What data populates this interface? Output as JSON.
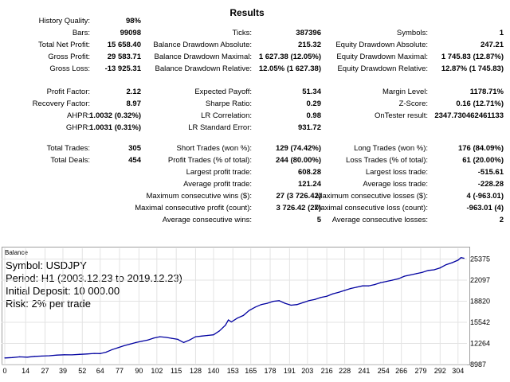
{
  "title": "Results",
  "stats": [
    {
      "label": "History Quality:",
      "value": "98%"
    },
    {
      "label": "Bars:",
      "value": "99098"
    },
    {
      "label": "Total Net Profit:",
      "value": "15 658.40"
    },
    {
      "label": "Gross Profit:",
      "value": "29 583.71"
    },
    {
      "label": "Gross Loss:",
      "value": "-13 925.31"
    },
    {
      "label": "Ticks:",
      "value": "387396"
    },
    {
      "label": "Balance Drawdown Absolute:",
      "value": "215.32"
    },
    {
      "label": "Balance Drawdown Maximal:",
      "value": "1 627.38 (12.05%)"
    },
    {
      "label": "Balance Drawdown Relative:",
      "value": "12.05% (1 627.38)"
    },
    {
      "label": "Symbols:",
      "value": "1"
    },
    {
      "label": "Equity Drawdown Absolute:",
      "value": "247.21"
    },
    {
      "label": "Equity Drawdown Maximal:",
      "value": "1 745.83 (12.87%)"
    },
    {
      "label": "Equity Drawdown Relative:",
      "value": "12.87% (1 745.83)"
    },
    {
      "label": "Profit Factor:",
      "value": "2.12"
    },
    {
      "label": "Recovery Factor:",
      "value": "8.97"
    },
    {
      "label": "AHPR:",
      "value": "1.0032 (0.32%)"
    },
    {
      "label": "GHPR:",
      "value": "1.0031 (0.31%)"
    },
    {
      "label": "Expected Payoff:",
      "value": "51.34"
    },
    {
      "label": "Sharpe Ratio:",
      "value": "0.29"
    },
    {
      "label": "LR Correlation:",
      "value": "0.98"
    },
    {
      "label": "LR Standard Error:",
      "value": "931.72"
    },
    {
      "label": "Margin Level:",
      "value": "1178.71%"
    },
    {
      "label": "Z-Score:",
      "value": "0.16 (12.71%)"
    },
    {
      "label": "OnTester result:",
      "value": "2347.730462461133"
    },
    {
      "label": "Total Trades:",
      "value": "305"
    },
    {
      "label": "Total Deals:",
      "value": "454"
    },
    {
      "label": "Short Trades (won %):",
      "value": "129 (74.42%)"
    },
    {
      "label": "Profit Trades (% of total):",
      "value": "244 (80.00%)"
    },
    {
      "label": "Largest profit trade:",
      "value": "608.28"
    },
    {
      "label": "Average profit trade:",
      "value": "121.24"
    },
    {
      "label": "Maximum consecutive wins ($):",
      "value": "27 (3 726.42)"
    },
    {
      "label": "Maximal consecutive profit (count):",
      "value": "3 726.42 (27)"
    },
    {
      "label": "Average consecutive wins:",
      "value": "5"
    },
    {
      "label": "Long Trades (won %):",
      "value": "176 (84.09%)"
    },
    {
      "label": "Loss Trades (% of total):",
      "value": "61 (20.00%)"
    },
    {
      "label": "Largest loss trade:",
      "value": "-515.61"
    },
    {
      "label": "Average loss trade:",
      "value": "-228.28"
    },
    {
      "label": "Maximum consecutive losses ($):",
      "value": "4 (-963.01)"
    },
    {
      "label": "Maximal consecutive loss (count):",
      "value": "-963.01 (4)"
    },
    {
      "label": "Average consecutive losses:",
      "value": "2"
    }
  ],
  "chart_title": "Balance",
  "chart_info": [
    "Symbol: USDJPY",
    "Period: H1 (2003.12.23 to 2019.12.23)",
    "Initial Deposit: 10 000.00",
    "Risk: 2% per trade"
  ],
  "chart_data": {
    "type": "line",
    "title": "Balance",
    "line_color": "#0000a0",
    "grid": true,
    "xlim": [
      0,
      310
    ],
    "ylim": [
      8987,
      26300
    ],
    "x_ticks": [
      0,
      14,
      27,
      39,
      52,
      64,
      77,
      90,
      102,
      115,
      128,
      140,
      153,
      165,
      178,
      191,
      203,
      216,
      228,
      241,
      254,
      266,
      279,
      292,
      304
    ],
    "y_ticks": [
      8987,
      12264,
      15542,
      18820,
      22097,
      25375
    ],
    "series": [
      {
        "x": [
          0,
          5,
          10,
          15,
          20,
          25,
          30,
          35,
          40,
          45,
          50,
          55,
          60,
          64,
          68,
          72,
          76,
          80,
          84,
          88,
          92,
          96,
          100,
          104,
          108,
          112,
          116,
          120,
          124,
          128,
          132,
          136,
          140,
          144,
          148,
          150,
          152,
          156,
          160,
          164,
          168,
          172,
          176,
          180,
          184,
          188,
          192,
          196,
          200,
          204,
          208,
          212,
          216,
          220,
          224,
          228,
          232,
          236,
          240,
          244,
          248,
          252,
          256,
          260,
          264,
          268,
          272,
          276,
          280,
          284,
          288,
          292,
          296,
          300,
          304,
          306,
          308
        ],
        "y": [
          10000,
          10060,
          10180,
          10120,
          10250,
          10300,
          10350,
          10450,
          10500,
          10480,
          10560,
          10620,
          10700,
          10680,
          10900,
          11300,
          11600,
          11900,
          12150,
          12400,
          12600,
          12800,
          13100,
          13300,
          13200,
          13050,
          12900,
          12400,
          12800,
          13300,
          13400,
          13500,
          13600,
          14200,
          15100,
          15900,
          15600,
          16200,
          16600,
          17400,
          17900,
          18300,
          18500,
          18800,
          18900,
          18500,
          18200,
          18300,
          18600,
          18900,
          19100,
          19400,
          19600,
          19950,
          20200,
          20500,
          20800,
          21000,
          21200,
          21200,
          21400,
          21700,
          21900,
          22100,
          22300,
          22700,
          22900,
          23100,
          23300,
          23600,
          23700,
          24000,
          24500,
          24800,
          25200,
          25600,
          25500
        ]
      }
    ]
  }
}
